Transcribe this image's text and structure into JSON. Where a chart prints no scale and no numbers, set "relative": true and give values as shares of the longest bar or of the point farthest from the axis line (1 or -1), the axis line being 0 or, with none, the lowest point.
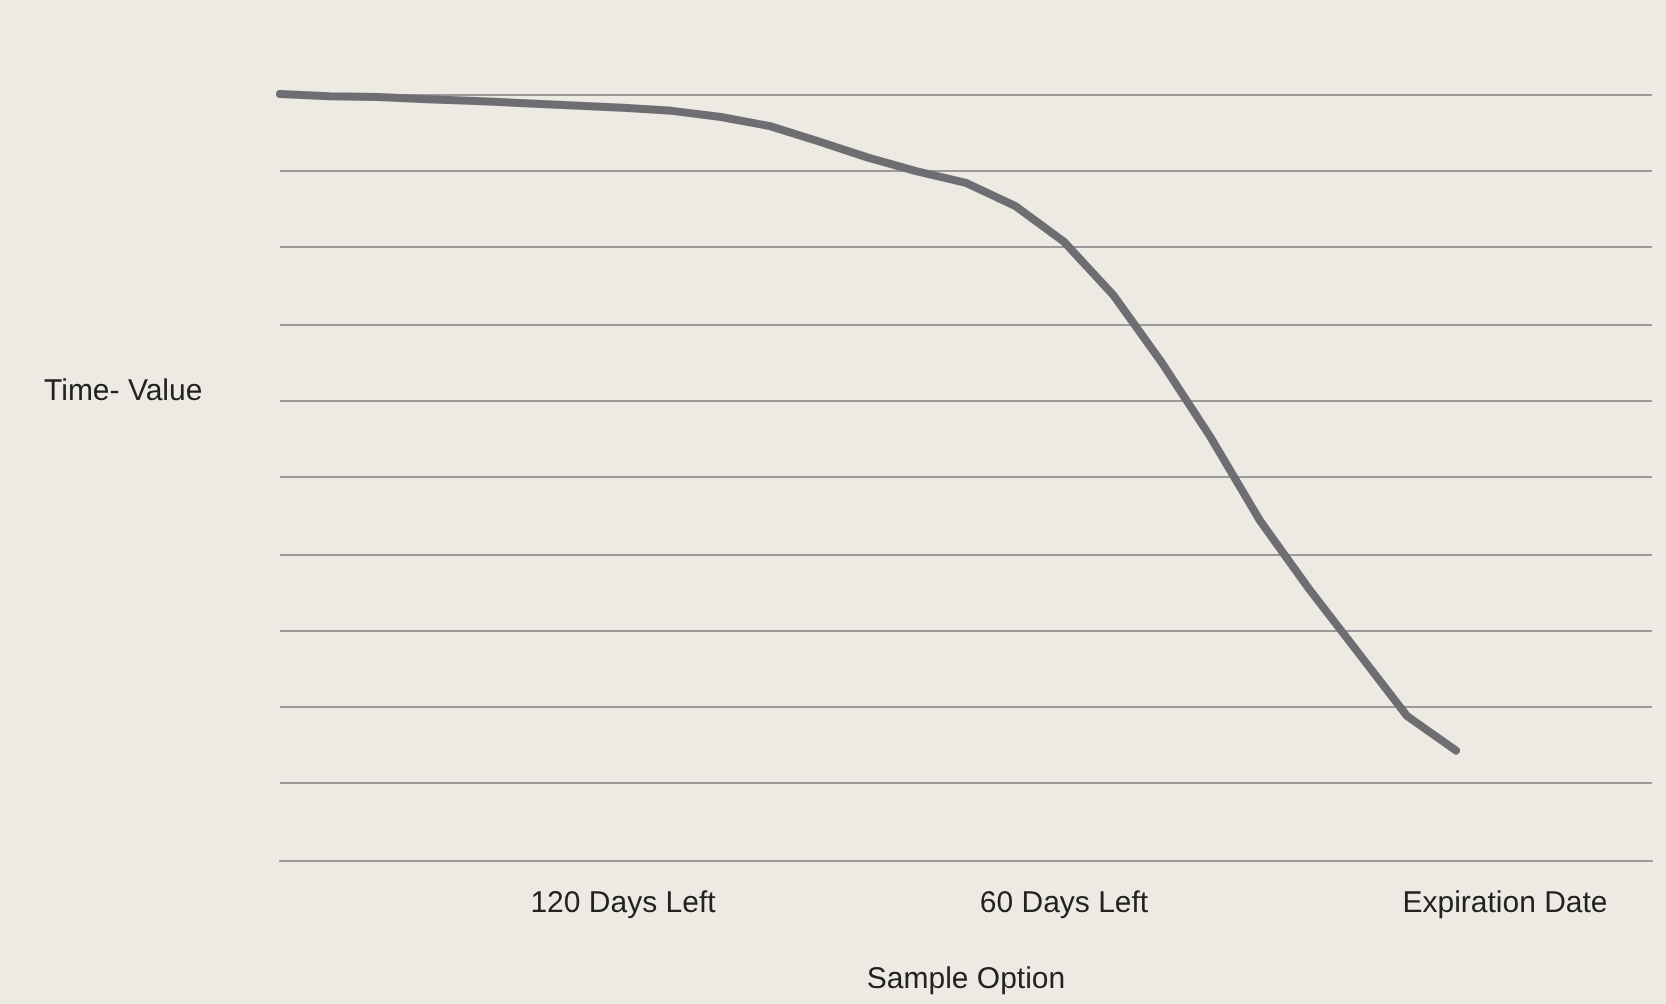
{
  "chart_data": {
    "type": "line",
    "relative": true,
    "xlabel": "Sample Option",
    "ylabel": "Time- Value",
    "categories": [
      null,
      null,
      null,
      null,
      null,
      null,
      null,
      "120 Days Left",
      null,
      null,
      null,
      null,
      null,
      null,
      null,
      null,
      "60 Days Left",
      null,
      null,
      null,
      null,
      null,
      null,
      null,
      null,
      "Expiration Date",
      null,
      null,
      null
    ],
    "series": [
      {
        "color": "#6d6d72",
        "values": [
          1.0,
          0.997,
          0.996,
          0.993,
          0.991,
          0.988,
          0.985,
          0.982,
          0.978,
          0.97,
          0.958,
          0.938,
          0.917,
          0.899,
          0.884,
          0.854,
          0.807,
          0.738,
          0.649,
          0.551,
          0.443,
          0.354,
          0.271,
          0.188,
          0.143,
          null,
          null,
          null,
          null
        ]
      }
    ],
    "grid": "y",
    "marker": "none",
    "line_style": "solid"
  }
}
